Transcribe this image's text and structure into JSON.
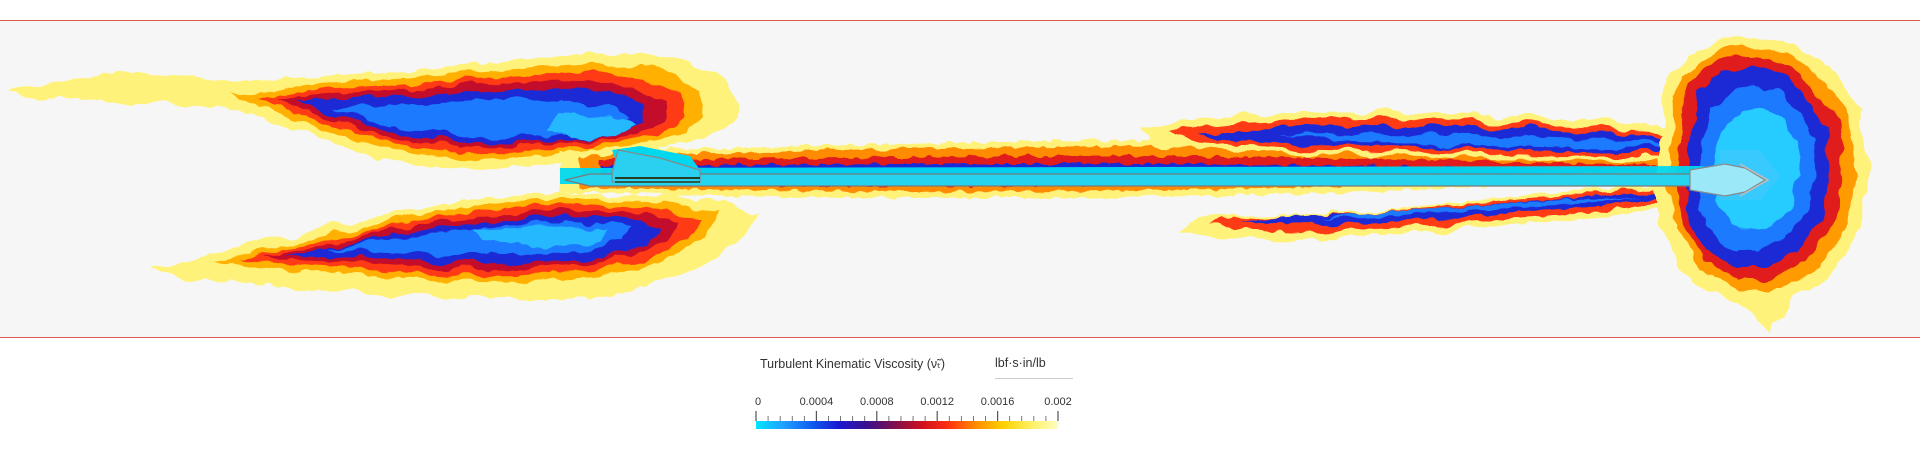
{
  "legend": {
    "title": "Turbulent Kinematic Viscosity (ν̃ₜ)",
    "unit": "lbf·s·in/lb",
    "min": 0,
    "max": 0.002,
    "tick_labels": [
      "0",
      "0.0004",
      "0.0008",
      "0.0012",
      "0.0016",
      "0.002"
    ],
    "colormap": [
      "#00e5ff",
      "#1fa0ff",
      "#1060f0",
      "#1a1ad0",
      "#3a1090",
      "#7a1050",
      "#cc1020",
      "#ff3010",
      "#ff8c00",
      "#ffd000",
      "#fff060",
      "#fffcc0"
    ]
  },
  "colors": {
    "domain_border": "#e05a5a",
    "background": "#f6f6f6",
    "body_outline": "#8a8a8a",
    "core": "#00d8f0"
  }
}
